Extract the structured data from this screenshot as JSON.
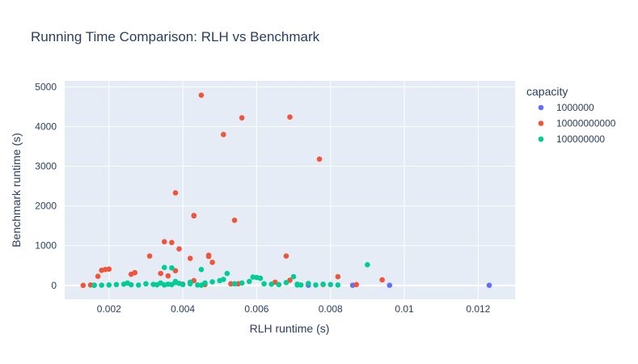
{
  "chart_data": {
    "type": "scatter",
    "title": "Running Time Comparison: RLH vs Benchmark",
    "xlabel": "RLH runtime (s)",
    "ylabel": "Benchmark runtime (s)",
    "xlim": [
      0.0008,
      0.013
    ],
    "ylim": [
      -350,
      5150
    ],
    "xticks": [
      0.002,
      0.004,
      0.006,
      0.008,
      0.01,
      0.012
    ],
    "xtick_labels": [
      "0.002",
      "0.004",
      "0.006",
      "0.008",
      "0.01",
      "0.012"
    ],
    "yticks": [
      0,
      1000,
      2000,
      3000,
      4000,
      5000
    ],
    "ytick_labels": [
      "0",
      "1000",
      "2000",
      "3000",
      "4000",
      "5000"
    ],
    "grid": true,
    "legend_title": "capacity",
    "legend_position": "right",
    "series": [
      {
        "name": "1000000",
        "color": "#636efa",
        "x": [
          0.0074,
          0.0086,
          0.0096,
          0.0123
        ],
        "y": [
          2,
          2,
          2,
          3
        ]
      },
      {
        "name": "10000000000",
        "color": "#ef553b",
        "x": [
          0.0013,
          0.0015,
          0.0016,
          0.0017,
          0.0018,
          0.0019,
          0.002,
          0.0026,
          0.0027,
          0.0031,
          0.0034,
          0.0035,
          0.0036,
          0.0037,
          0.0038,
          0.0038,
          0.0039,
          0.004,
          0.0042,
          0.0043,
          0.0043,
          0.0043,
          0.0045,
          0.0046,
          0.0047,
          0.0047,
          0.0048,
          0.0051,
          0.0053,
          0.0054,
          0.0055,
          0.0056,
          0.0065,
          0.0068,
          0.0069,
          0.0069,
          0.0077,
          0.0078,
          0.0082,
          0.0087,
          0.0094
        ],
        "y": [
          0,
          10,
          5,
          230,
          380,
          400,
          410,
          280,
          320,
          740,
          300,
          1100,
          240,
          1080,
          370,
          2330,
          920,
          30,
          680,
          1760,
          1750,
          120,
          4790,
          20,
          760,
          730,
          580,
          3800,
          40,
          1640,
          40,
          4220,
          80,
          740,
          4240,
          130,
          3180,
          20,
          220,
          20,
          140
        ]
      },
      {
        "name": "100000000",
        "color": "#00cc96",
        "x": [
          0.0016,
          0.0018,
          0.002,
          0.0022,
          0.0024,
          0.0026,
          0.0028,
          0.003,
          0.0032,
          0.0034,
          0.0035,
          0.0036,
          0.0037,
          0.0038,
          0.0039,
          0.004,
          0.0042,
          0.0044,
          0.0045,
          0.0046,
          0.0048,
          0.005,
          0.0052,
          0.0054,
          0.0056,
          0.0058,
          0.006,
          0.0062,
          0.0064,
          0.0066,
          0.0068,
          0.007,
          0.0071,
          0.0072,
          0.0074,
          0.0076,
          0.0078,
          0.008,
          0.0082,
          0.009,
          0.0035,
          0.0037,
          0.0045,
          0.0051,
          0.0059,
          0.0061,
          0.0071,
          0.0038,
          0.0042,
          0.0025,
          0.0033
        ],
        "y": [
          0,
          5,
          10,
          20,
          30,
          15,
          8,
          40,
          25,
          60,
          450,
          30,
          440,
          100,
          50,
          20,
          80,
          10,
          400,
          60,
          90,
          120,
          300,
          40,
          60,
          100,
          200,
          40,
          30,
          20,
          70,
          220,
          30,
          10,
          50,
          10,
          30,
          20,
          10,
          520,
          10,
          20,
          5,
          150,
          210,
          180,
          10,
          70,
          40,
          60,
          15
        ]
      }
    ]
  }
}
